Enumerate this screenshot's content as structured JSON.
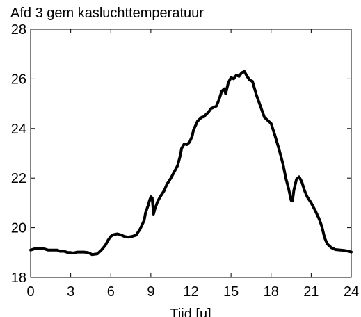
{
  "chart_data": {
    "type": "line",
    "title": "Afd 3 gem kasluchttemperatuur",
    "xlabel": "Tijd [u]",
    "ylabel": "",
    "xlim": [
      0,
      24
    ],
    "ylim": [
      18,
      28
    ],
    "xticks": [
      0,
      3,
      6,
      9,
      12,
      15,
      18,
      21,
      24
    ],
    "yticks": [
      18,
      20,
      22,
      24,
      26,
      28
    ],
    "grid": false,
    "line_color": "#000000",
    "series": [
      {
        "x": [
          0,
          0.3,
          1.0,
          1.3,
          2.0,
          2.2,
          2.5,
          2.8,
          3.0,
          3.2,
          3.5,
          4.0,
          4.3,
          4.6,
          5.0,
          5.3,
          5.6,
          5.8,
          6.0,
          6.2,
          6.5,
          6.8,
          7.0,
          7.3,
          7.6,
          7.9,
          8.2,
          8.5,
          8.6,
          8.8,
          8.9,
          9.0,
          9.1,
          9.2,
          9.3,
          9.5,
          9.7,
          10.0,
          10.2,
          10.5,
          10.7,
          11.0,
          11.2,
          11.3,
          11.5,
          11.7,
          11.9,
          12.1,
          12.2,
          12.5,
          12.8,
          13.0,
          13.1,
          13.3,
          13.5,
          13.7,
          13.9,
          14.1,
          14.3,
          14.5,
          14.6,
          14.8,
          15.0,
          15.2,
          15.4,
          15.6,
          15.8,
          16.0,
          16.2,
          16.4,
          16.6,
          16.9,
          17.2,
          17.5,
          17.8,
          18.0,
          18.3,
          18.6,
          18.9,
          19.1,
          19.3,
          19.5,
          19.6,
          19.7,
          19.9,
          20.1,
          20.3,
          20.5,
          20.7,
          21.0,
          21.3,
          21.6,
          21.8,
          22.0,
          22.2,
          22.5,
          22.8,
          23.2,
          23.5,
          23.8,
          24.0
        ],
        "y": [
          19.1,
          19.15,
          19.15,
          19.1,
          19.1,
          19.05,
          19.05,
          19.0,
          19.0,
          18.98,
          19.02,
          19.02,
          19.0,
          18.92,
          18.95,
          19.1,
          19.3,
          19.5,
          19.65,
          19.72,
          19.75,
          19.7,
          19.65,
          19.62,
          19.65,
          19.7,
          19.95,
          20.3,
          20.6,
          20.9,
          21.1,
          21.25,
          21.2,
          20.55,
          20.75,
          21.05,
          21.25,
          21.5,
          21.75,
          22.0,
          22.2,
          22.5,
          22.9,
          23.2,
          23.38,
          23.35,
          23.45,
          23.7,
          23.95,
          24.3,
          24.45,
          24.48,
          24.55,
          24.65,
          24.8,
          24.85,
          24.9,
          25.15,
          25.5,
          25.6,
          25.4,
          25.85,
          26.05,
          26.0,
          26.15,
          26.1,
          26.25,
          26.3,
          26.1,
          25.95,
          25.9,
          25.35,
          24.9,
          24.45,
          24.3,
          24.2,
          23.7,
          23.15,
          22.55,
          22.0,
          21.6,
          21.1,
          21.08,
          21.5,
          21.95,
          22.05,
          21.85,
          21.5,
          21.25,
          21.0,
          20.7,
          20.35,
          20.05,
          19.6,
          19.35,
          19.2,
          19.12,
          19.1,
          19.08,
          19.05,
          19.02
        ]
      }
    ]
  }
}
